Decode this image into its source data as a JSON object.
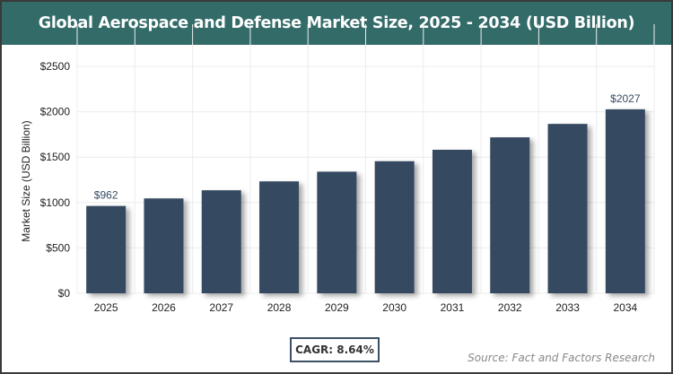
{
  "header": {
    "title": "Global Aerospace and Defense Market Size, 2025 - 2034 (USD Billion)"
  },
  "chart_data": {
    "type": "bar",
    "title": "Global Aerospace and Defense Market Size, 2025 - 2034 (USD Billion)",
    "xlabel": "",
    "ylabel": "Market Size (USD Billion)",
    "categories": [
      "2025",
      "2026",
      "2027",
      "2028",
      "2029",
      "2030",
      "2031",
      "2032",
      "2033",
      "2034"
    ],
    "values": [
      962,
      1045,
      1135,
      1233,
      1340,
      1455,
      1581,
      1718,
      1866,
      2027
    ],
    "data_labels": {
      "0": "$962",
      "9": "$2027"
    },
    "yticks": [
      "$0",
      "$500",
      "$1000",
      "$1500",
      "$2000",
      "$2500"
    ],
    "ylim": [
      0,
      2500
    ],
    "grid": true,
    "bar_color": "#364a60"
  },
  "footer": {
    "cagr": "CAGR: 8.64%",
    "source": "Source: Fact and Factors Research"
  }
}
